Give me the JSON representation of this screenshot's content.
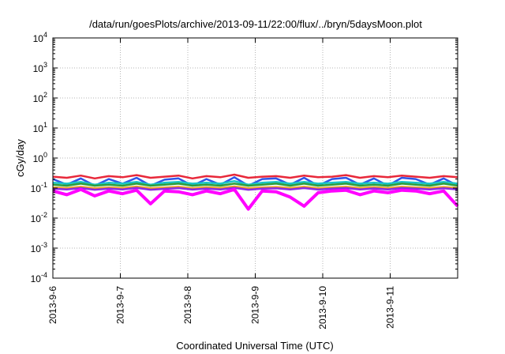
{
  "chart_data": {
    "type": "line",
    "title": "/data/run/goesPlots/archive/2013-09-11/22:00/flux/../bryn/5daysMoon.plot",
    "xlabel": "Coordinated Universal Time (UTC)",
    "ylabel": "cGy/day",
    "yscale": "log",
    "ylim": [
      0.0001,
      10000
    ],
    "y_ticks": [
      {
        "base": "10",
        "exp": "-4",
        "value": 0.0001
      },
      {
        "base": "10",
        "exp": "-3",
        "value": 0.001
      },
      {
        "base": "10",
        "exp": "-2",
        "value": 0.01
      },
      {
        "base": "10",
        "exp": "-1",
        "value": 0.1
      },
      {
        "base": "10",
        "exp": "0",
        "value": 1
      },
      {
        "base": "10",
        "exp": "1",
        "value": 10
      },
      {
        "base": "10",
        "exp": "2",
        "value": 100
      },
      {
        "base": "10",
        "exp": "3",
        "value": 1000
      },
      {
        "base": "10",
        "exp": "4",
        "value": 10000
      }
    ],
    "x_ticks": [
      "2013-9-6",
      "2013-9-7",
      "2013-9-8",
      "2013-9-9",
      "2013-9-10",
      "2013-9-11"
    ],
    "xlim": [
      "2013-09-06",
      "2013-09-12"
    ],
    "grid": true,
    "legend": "none",
    "series": [
      {
        "color": "#e8283a",
        "values": [
          0.24,
          0.22,
          0.26,
          0.21,
          0.25,
          0.23,
          0.27,
          0.22,
          0.24,
          0.26,
          0.21,
          0.25,
          0.23,
          0.28,
          0.22,
          0.24,
          0.25,
          0.22,
          0.26,
          0.23,
          0.24,
          0.27,
          0.22,
          0.25,
          0.23,
          0.26,
          0.24,
          0.22,
          0.25,
          0.23
        ]
      },
      {
        "color": "#2f55e8",
        "values": [
          0.2,
          0.13,
          0.21,
          0.12,
          0.2,
          0.14,
          0.22,
          0.12,
          0.19,
          0.21,
          0.12,
          0.2,
          0.13,
          0.23,
          0.12,
          0.2,
          0.21,
          0.13,
          0.22,
          0.12,
          0.2,
          0.22,
          0.13,
          0.21,
          0.12,
          0.22,
          0.2,
          0.13,
          0.21,
          0.12
        ]
      },
      {
        "color": "#19c6c6",
        "values": [
          0.15,
          0.14,
          0.16,
          0.13,
          0.15,
          0.14,
          0.16,
          0.13,
          0.15,
          0.16,
          0.14,
          0.15,
          0.14,
          0.17,
          0.13,
          0.15,
          0.16,
          0.14,
          0.16,
          0.14,
          0.15,
          0.16,
          0.14,
          0.15,
          0.14,
          0.16,
          0.15,
          0.14,
          0.16,
          0.14
        ]
      },
      {
        "color": "#2f9e3a",
        "values": [
          0.13,
          0.12,
          0.14,
          0.12,
          0.13,
          0.12,
          0.14,
          0.12,
          0.13,
          0.14,
          0.12,
          0.13,
          0.12,
          0.14,
          0.12,
          0.13,
          0.14,
          0.12,
          0.14,
          0.12,
          0.13,
          0.14,
          0.12,
          0.13,
          0.12,
          0.14,
          0.13,
          0.12,
          0.14,
          0.12
        ]
      },
      {
        "color": "#f0a020",
        "values": [
          0.105,
          0.1,
          0.11,
          0.098,
          0.105,
          0.1,
          0.112,
          0.098,
          0.104,
          0.11,
          0.099,
          0.106,
          0.1,
          0.113,
          0.098,
          0.105,
          0.109,
          0.1,
          0.11,
          0.099,
          0.105,
          0.11,
          0.1,
          0.107,
          0.1,
          0.11,
          0.105,
          0.1,
          0.109,
          0.1
        ]
      },
      {
        "color": "#8a2be2",
        "values": [
          0.095,
          0.09,
          0.1,
          0.088,
          0.095,
          0.09,
          0.101,
          0.088,
          0.094,
          0.1,
          0.089,
          0.096,
          0.09,
          0.102,
          0.088,
          0.095,
          0.099,
          0.09,
          0.1,
          0.089,
          0.095,
          0.1,
          0.09,
          0.097,
          0.09,
          0.1,
          0.095,
          0.09,
          0.099,
          0.09
        ]
      },
      {
        "color": "#ff00ff",
        "values": [
          0.08,
          0.06,
          0.09,
          0.055,
          0.08,
          0.065,
          0.085,
          0.03,
          0.08,
          0.075,
          0.06,
          0.08,
          0.065,
          0.09,
          0.02,
          0.08,
          0.075,
          0.05,
          0.025,
          0.07,
          0.08,
          0.085,
          0.06,
          0.08,
          0.07,
          0.085,
          0.08,
          0.065,
          0.08,
          0.025
        ]
      }
    ]
  }
}
